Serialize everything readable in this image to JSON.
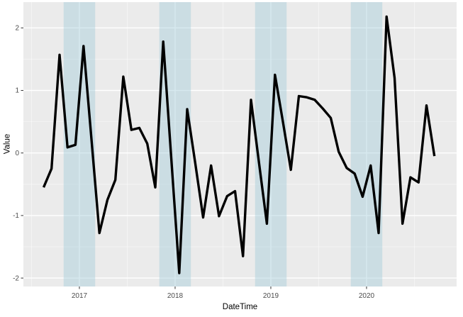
{
  "chart_data": {
    "type": "line",
    "title": "",
    "xlabel": "DateTime",
    "ylabel": "Value",
    "xlim": [
      2016.415,
      2020.941
    ],
    "ylim": [
      -2.135,
      2.412
    ],
    "grid": true,
    "legend": "none",
    "panel_bg": "#EBEBEB",
    "grid_color": "#FFFFFF",
    "band_color": "#9CC8D8",
    "band_opacity": 0.4,
    "line_color": "#000000",
    "line_width": 3.4,
    "axis_text_color": "#4D4D4D",
    "tick_color": "#333333",
    "x_ticks": [
      {
        "label": "2017",
        "x": 2017
      },
      {
        "label": "2018",
        "x": 2018
      },
      {
        "label": "2019",
        "x": 2019
      },
      {
        "label": "2020",
        "x": 2020
      }
    ],
    "y_ticks": [
      {
        "label": "2",
        "y": 2
      },
      {
        "label": "1",
        "y": 1
      },
      {
        "label": "0",
        "y": 0
      },
      {
        "label": "-1",
        "y": -1
      },
      {
        "label": "-2",
        "y": -2
      }
    ],
    "x_minor": [
      2016.5,
      2017.5,
      2018.5,
      2019.5,
      2020.5
    ],
    "y_minor": [
      1.5,
      0.5,
      -0.5,
      -1.5
    ],
    "bands": [
      {
        "from": 2016.835,
        "to": 2017.165
      },
      {
        "from": 2017.835,
        "to": 2018.165
      },
      {
        "from": 2018.835,
        "to": 2019.165
      },
      {
        "from": 2019.835,
        "to": 2020.165
      }
    ],
    "series": [
      {
        "name": "Value",
        "color": "#000000",
        "points": [
          [
            2016.626,
            -0.55
          ],
          [
            2016.709,
            -0.25
          ],
          [
            2016.793,
            1.57
          ],
          [
            2016.876,
            0.09
          ],
          [
            2016.959,
            0.13
          ],
          [
            2017.043,
            1.71
          ],
          [
            2017.126,
            0.22
          ],
          [
            2017.209,
            -1.28
          ],
          [
            2017.293,
            -0.75
          ],
          [
            2017.376,
            -0.43
          ],
          [
            2017.459,
            1.22
          ],
          [
            2017.543,
            0.37
          ],
          [
            2017.626,
            0.4
          ],
          [
            2017.709,
            0.15
          ],
          [
            2017.793,
            -0.55
          ],
          [
            2017.876,
            1.78
          ],
          [
            2017.959,
            -0.06
          ],
          [
            2018.043,
            -1.92
          ],
          [
            2018.126,
            0.7
          ],
          [
            2018.209,
            -0.15
          ],
          [
            2018.293,
            -1.03
          ],
          [
            2018.376,
            -0.2
          ],
          [
            2018.459,
            -1.01
          ],
          [
            2018.543,
            -0.69
          ],
          [
            2018.626,
            -0.61
          ],
          [
            2018.709,
            -1.65
          ],
          [
            2018.793,
            0.85
          ],
          [
            2018.876,
            -0.15
          ],
          [
            2018.959,
            -1.13
          ],
          [
            2019.043,
            1.25
          ],
          [
            2019.126,
            0.5
          ],
          [
            2019.209,
            -0.27
          ],
          [
            2019.293,
            0.91
          ],
          [
            2019.376,
            0.89
          ],
          [
            2019.459,
            0.85
          ],
          [
            2019.543,
            0.71
          ],
          [
            2019.626,
            0.56
          ],
          [
            2019.709,
            0.02
          ],
          [
            2019.793,
            -0.24
          ],
          [
            2019.876,
            -0.33
          ],
          [
            2019.959,
            -0.7
          ],
          [
            2020.043,
            -0.2
          ],
          [
            2020.126,
            -1.28
          ],
          [
            2020.209,
            2.18
          ],
          [
            2020.293,
            1.2
          ],
          [
            2020.376,
            -1.13
          ],
          [
            2020.459,
            -0.39
          ],
          [
            2020.543,
            -0.47
          ],
          [
            2020.626,
            0.76
          ],
          [
            2020.709,
            -0.05
          ]
        ]
      }
    ]
  }
}
